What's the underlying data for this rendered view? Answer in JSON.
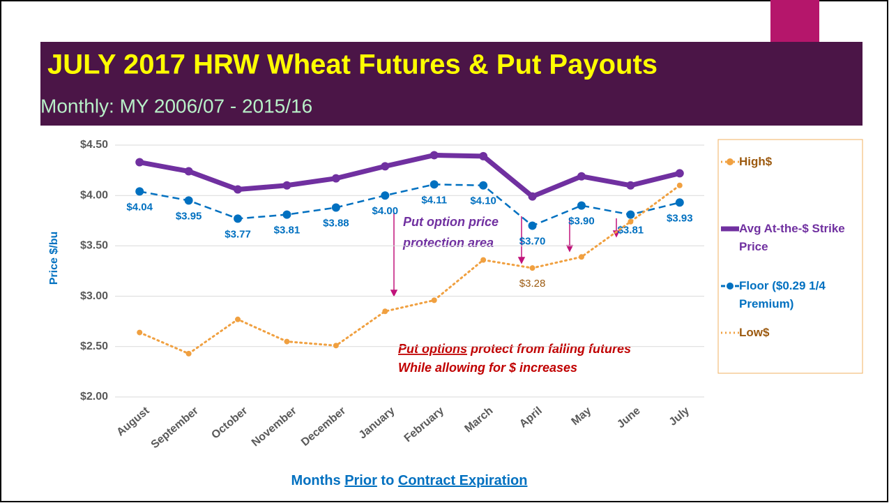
{
  "header": {
    "title": "JULY 2017 HRW Wheat Futures & Put Payouts",
    "subtitle": "Monthly: MY 2006/07 - 2015/16"
  },
  "chart_data": {
    "type": "line",
    "y_label": "Price $/bu",
    "x_label_parts": [
      "Months ",
      "Prior",
      " to ",
      "Contract Expiration"
    ],
    "categories": [
      "August",
      "September",
      "October",
      "November",
      "December",
      "January",
      "February",
      "March",
      "April",
      "May",
      "June",
      "July"
    ],
    "ylim": [
      2.0,
      4.5
    ],
    "yticks": [
      {
        "value": 2.0,
        "label": "$2.00"
      },
      {
        "value": 2.5,
        "label": "$2.50"
      },
      {
        "value": 3.0,
        "label": "$3.00"
      },
      {
        "value": 3.5,
        "label": "$3.50"
      },
      {
        "value": 4.0,
        "label": "$4.00"
      },
      {
        "value": 4.5,
        "label": "$4.50"
      }
    ],
    "grid": true,
    "series": [
      {
        "name": "High$",
        "color": "#f0a040",
        "style": "dotted-markers",
        "values": [
          2.64,
          2.43,
          2.77,
          2.55,
          2.51,
          2.85,
          2.96,
          3.36,
          3.28,
          3.39,
          3.74,
          4.1
        ],
        "value_labels": [
          null,
          null,
          null,
          null,
          null,
          null,
          null,
          null,
          "$3.28",
          null,
          null,
          null
        ]
      },
      {
        "name": "Avg At-the-$ Strike Price",
        "color": "#7030a0",
        "style": "thick",
        "values": [
          4.33,
          4.24,
          4.06,
          4.1,
          4.17,
          4.29,
          4.4,
          4.39,
          3.99,
          4.19,
          4.1,
          4.22
        ]
      },
      {
        "name": "Floor ($0.29 1/4 Premium)",
        "color": "#0070c0",
        "style": "dashed-markers",
        "values": [
          4.04,
          3.95,
          3.77,
          3.81,
          3.88,
          4.0,
          4.11,
          4.1,
          3.7,
          3.9,
          3.81,
          3.93
        ],
        "value_labels": [
          "$4.04",
          "$3.95",
          "$3.77",
          "$3.81",
          "$3.88",
          "$4.00",
          "$4.11",
          "$4.10",
          "$3.70",
          "$3.90",
          "$3.81",
          "$3.93"
        ]
      }
    ],
    "legend_only": [
      {
        "name": "Low$",
        "color": "#f0a040"
      }
    ],
    "annotations": [
      "Put option price",
      "protection area",
      "Put options",
      " protect from falling futures",
      "While allowing for $ increases"
    ]
  }
}
